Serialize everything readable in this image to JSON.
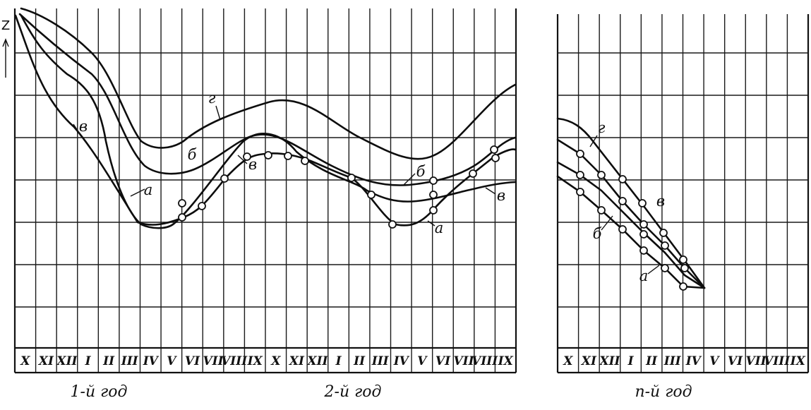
{
  "axis": {
    "y_label": "Z"
  },
  "panels": [
    {
      "id": "main",
      "months": [
        "X",
        "XI",
        "XII",
        "I",
        "II",
        "III",
        "IV",
        "V",
        "VI",
        "VII",
        "VIII",
        "IX",
        "X",
        "XI",
        "XII",
        "I",
        "II",
        "III",
        "IV",
        "V",
        "VI",
        "VII",
        "VIII",
        "IX"
      ],
      "year_labels": [
        "1-й год",
        "2-й год"
      ]
    },
    {
      "id": "nth",
      "months": [
        "X",
        "XI",
        "XII",
        "I",
        "II",
        "III",
        "IV",
        "V",
        "VI",
        "VII",
        "VIII",
        "IX"
      ],
      "year_labels": [
        "n-й год"
      ]
    }
  ],
  "curve_labels": {
    "main": [
      "г",
      "б",
      "в",
      "а",
      "в",
      "б",
      "в",
      "а"
    ],
    "nth": [
      "г",
      "в",
      "б",
      "а"
    ]
  }
}
